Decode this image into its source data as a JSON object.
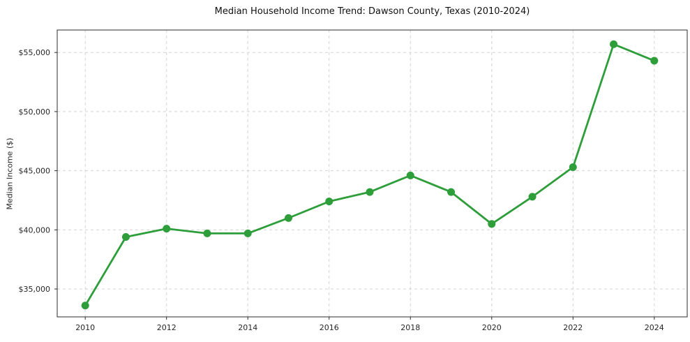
{
  "chart": {
    "title": "Median Household Income Trend: Dawson County, Texas (2010-2024)",
    "ylabel": "Median Income ($)"
  },
  "chart_data": {
    "type": "line",
    "title": "Median Household Income Trend: Dawson County, Texas (2010-2024)",
    "xlabel": "",
    "ylabel": "Median Income ($)",
    "x": [
      2010,
      2011,
      2012,
      2013,
      2014,
      2015,
      2016,
      2017,
      2018,
      2019,
      2020,
      2021,
      2022,
      2023,
      2024
    ],
    "y": [
      33600,
      39400,
      40100,
      39700,
      39700,
      41000,
      42400,
      43200,
      44600,
      43200,
      40500,
      42800,
      45300,
      55700,
      54300
    ],
    "x_ticks": [
      2010,
      2012,
      2014,
      2016,
      2018,
      2020,
      2022,
      2024
    ],
    "x_tick_labels": [
      "2010",
      "2012",
      "2014",
      "2016",
      "2018",
      "2020",
      "2022",
      "2024"
    ],
    "y_ticks": [
      35000,
      40000,
      45000,
      50000,
      55000
    ],
    "y_tick_labels": [
      "$35,000",
      "$40,000",
      "$45,000",
      "$50,000",
      "$55,000"
    ],
    "xlim": [
      2009.31,
      2024.81
    ],
    "ylim": [
      32640,
      56900
    ],
    "grid": true,
    "grid_style": "dashed",
    "legend": "none",
    "line_color": "#2d9e3a",
    "grid_color": "#d2d2d2",
    "spine_color": "#2b2b2b",
    "marker": "circle"
  }
}
